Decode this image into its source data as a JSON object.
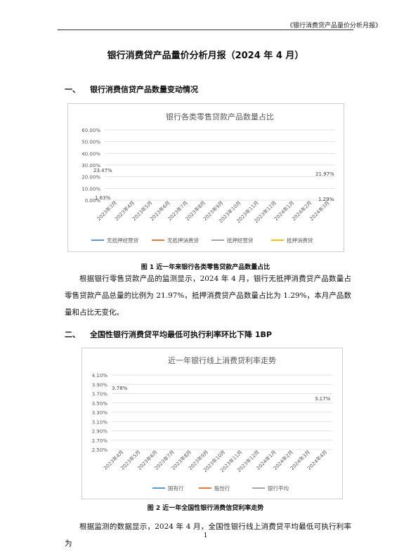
{
  "header": {
    "running_title": "《银行消费贷产品量价分析月报》"
  },
  "title": "银行消费贷产品量价分析月报（2024 年 4 月）",
  "section1": {
    "number": "一、",
    "heading": "银行消费信贷产品数量变动情况"
  },
  "figure1": {
    "caption": "图 1  近一年来银行各类零售贷款产品数量占比"
  },
  "paragraph1": "根据银行零售贷款产品的监测显示，2024 年 4 月，银行无抵押消费贷产品数量占零售贷款产品总量的比例为 21.97%，抵押消费贷产品数量占比为 1.29%，本月产品数量和占比无变化。",
  "section2": {
    "number": "二、",
    "heading": "全国性银行消费贷平均最低可执行利率环比下降 1BP"
  },
  "figure2": {
    "caption": "图 2  近一年全国性银行消费信贷利率走势"
  },
  "paragraph2": "根据监测的数据显示，2024 年 4 月，全国性银行线上消费贷平均最低可执行利率为",
  "page_number": "1",
  "charts": [
    {
      "title": "银行各类零售贷款产品数量占比",
      "y_ticks": [
        "60.00%",
        "50.00%",
        "40.00%",
        "30.00%",
        "20.00%",
        "10.00%",
        "0.00%"
      ],
      "x_ticks": [
        "2023年3月",
        "2023年4月",
        "2023年5月",
        "2023年6月",
        "2023年7月",
        "2023年8月",
        "2023年9月",
        "2023年10月",
        "2023年11月",
        "2023年12月",
        "2024年1月",
        "2024年2月",
        "2024年3月"
      ],
      "legend": [
        "无抵押经营贷",
        "无抵押消费贷",
        "抵押经营贷",
        "抵押消费贷"
      ],
      "data_labels": [
        "23.47%",
        "21.97%",
        "1.63%",
        "1.29%"
      ]
    },
    {
      "title": "近一年银行线上消费贷利率走势",
      "y_ticks": [
        "4.10%",
        "3.90%",
        "3.70%",
        "3.50%",
        "3.30%",
        "3.10%",
        "2.90%",
        "2.70%",
        "2.50%"
      ],
      "x_ticks": [
        "2023年4月",
        "2023年5月",
        "2023年6月",
        "2023年7月",
        "2023年8月",
        "2023年9月",
        "2023年10月",
        "2023年11月",
        "2023年12月",
        "2024年1月",
        "2024年2月",
        "2024年3月",
        "2024年4月"
      ],
      "legend": [
        "国有行",
        "股份行",
        "银行平均"
      ],
      "data_labels": [
        "3.78%",
        "3.17%"
      ]
    }
  ],
  "colors": {
    "blue": "#5b9bd5",
    "orange": "#ed7d31",
    "gray": "#a5a5a5",
    "yellow": "#ffc000"
  }
}
